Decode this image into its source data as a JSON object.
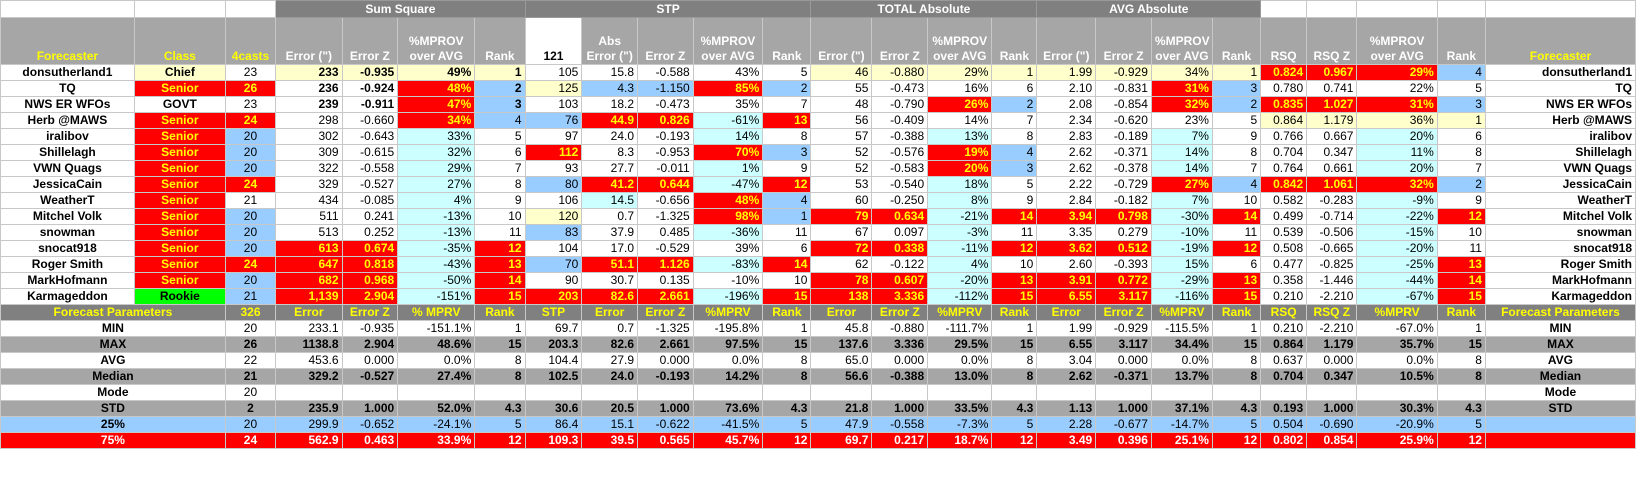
{
  "groups": {
    "sum_square": "Sum Square",
    "stp": "STP",
    "total_abs": "TOTAL Absolute",
    "avg_abs": "AVG Absolute"
  },
  "headers": {
    "forecaster": "Forecaster",
    "class": "Class",
    "fourcasts": "4casts",
    "error_in": "Error (\")",
    "error_z": "Error Z",
    "mprov": "%MPROV over AVG",
    "rank": "Rank",
    "stp_num": "121",
    "abs_error": "Abs Error (\")",
    "rsq": "RSQ",
    "rsq_z": "RSQ Z"
  },
  "rows": [
    [
      "donsutherland1",
      "Chief",
      "23",
      "233",
      "-0.935",
      "49%",
      "1",
      "105",
      "15.8",
      "-0.588",
      "43%",
      "5",
      "46",
      "-0.880",
      "29%",
      "1",
      "1.99",
      "-0.929",
      "34%",
      "1",
      "0.824",
      "0.967",
      "29%",
      "4",
      "donsutherland1"
    ],
    [
      "TQ",
      "Senior",
      "26",
      "236",
      "-0.924",
      "48%",
      "2",
      "125",
      "4.3",
      "-1.150",
      "85%",
      "2",
      "55",
      "-0.473",
      "16%",
      "6",
      "2.10",
      "-0.831",
      "31%",
      "3",
      "0.780",
      "0.741",
      "22%",
      "5",
      "TQ"
    ],
    [
      "NWS ER WFOs",
      "GOVT",
      "23",
      "239",
      "-0.911",
      "47%",
      "3",
      "103",
      "18.2",
      "-0.473",
      "35%",
      "7",
      "48",
      "-0.790",
      "26%",
      "2",
      "2.08",
      "-0.854",
      "32%",
      "2",
      "0.835",
      "1.027",
      "31%",
      "3",
      "NWS ER WFOs"
    ],
    [
      "Herb @MAWS",
      "Senior",
      "24",
      "298",
      "-0.660",
      "34%",
      "4",
      "76",
      "44.9",
      "0.826",
      "-61%",
      "13",
      "56",
      "-0.409",
      "14%",
      "7",
      "2.34",
      "-0.620",
      "23%",
      "5",
      "0.864",
      "1.179",
      "36%",
      "1",
      "Herb @MAWS"
    ],
    [
      "iralibov",
      "Senior",
      "20",
      "302",
      "-0.643",
      "33%",
      "5",
      "97",
      "24.0",
      "-0.193",
      "14%",
      "8",
      "57",
      "-0.388",
      "13%",
      "8",
      "2.83",
      "-0.189",
      "7%",
      "9",
      "0.766",
      "0.667",
      "20%",
      "6",
      "iralibov"
    ],
    [
      "Shillelagh",
      "Senior",
      "20",
      "309",
      "-0.615",
      "32%",
      "6",
      "112",
      "8.3",
      "-0.953",
      "70%",
      "3",
      "52",
      "-0.576",
      "19%",
      "4",
      "2.62",
      "-0.371",
      "14%",
      "8",
      "0.704",
      "0.347",
      "11%",
      "8",
      "Shillelagh"
    ],
    [
      "VWN Quags",
      "Senior",
      "20",
      "322",
      "-0.558",
      "29%",
      "7",
      "93",
      "27.7",
      "-0.011",
      "1%",
      "9",
      "52",
      "-0.583",
      "20%",
      "3",
      "2.62",
      "-0.378",
      "14%",
      "7",
      "0.764",
      "0.661",
      "20%",
      "7",
      "VWN Quags"
    ],
    [
      "JessicaCain",
      "Senior",
      "24",
      "329",
      "-0.527",
      "27%",
      "8",
      "80",
      "41.2",
      "0.644",
      "-47%",
      "12",
      "53",
      "-0.540",
      "18%",
      "5",
      "2.22",
      "-0.729",
      "27%",
      "4",
      "0.842",
      "1.061",
      "32%",
      "2",
      "JessicaCain"
    ],
    [
      "WeatherT",
      "Senior",
      "21",
      "434",
      "-0.085",
      "4%",
      "9",
      "106",
      "14.5",
      "-0.656",
      "48%",
      "4",
      "60",
      "-0.250",
      "8%",
      "9",
      "2.84",
      "-0.182",
      "7%",
      "10",
      "0.582",
      "-0.283",
      "-9%",
      "9",
      "WeatherT"
    ],
    [
      "Mitchel Volk",
      "Senior",
      "20",
      "511",
      "0.241",
      "-13%",
      "10",
      "120",
      "0.7",
      "-1.325",
      "98%",
      "1",
      "79",
      "0.634",
      "-21%",
      "14",
      "3.94",
      "0.798",
      "-30%",
      "14",
      "0.499",
      "-0.714",
      "-22%",
      "12",
      "Mitchel Volk"
    ],
    [
      "snowman",
      "Senior",
      "20",
      "513",
      "0.252",
      "-13%",
      "11",
      "83",
      "37.9",
      "0.485",
      "-36%",
      "11",
      "67",
      "0.097",
      "-3%",
      "11",
      "3.35",
      "0.279",
      "-10%",
      "11",
      "0.539",
      "-0.506",
      "-15%",
      "10",
      "snowman"
    ],
    [
      "snocat918",
      "Senior",
      "20",
      "613",
      "0.674",
      "-35%",
      "12",
      "104",
      "17.0",
      "-0.529",
      "39%",
      "6",
      "72",
      "0.338",
      "-11%",
      "12",
      "3.62",
      "0.512",
      "-19%",
      "12",
      "0.508",
      "-0.665",
      "-20%",
      "11",
      "snocat918"
    ],
    [
      "Roger Smith",
      "Senior",
      "24",
      "647",
      "0.818",
      "-43%",
      "13",
      "70",
      "51.1",
      "1.126",
      "-83%",
      "14",
      "62",
      "-0.122",
      "4%",
      "10",
      "2.60",
      "-0.393",
      "15%",
      "6",
      "0.477",
      "-0.825",
      "-25%",
      "13",
      "Roger Smith"
    ],
    [
      "MarkHofmann",
      "Senior",
      "20",
      "682",
      "0.968",
      "-50%",
      "14",
      "90",
      "30.7",
      "0.135",
      "-10%",
      "10",
      "78",
      "0.607",
      "-20%",
      "13",
      "3.91",
      "0.772",
      "-29%",
      "13",
      "0.358",
      "-1.446",
      "-44%",
      "14",
      "MarkHofmann"
    ],
    [
      "Karmageddon",
      "Rookie",
      "21",
      "1,139",
      "2.904",
      "-151%",
      "15",
      "203",
      "82.6",
      "2.661",
      "-196%",
      "15",
      "138",
      "3.336",
      "-112%",
      "15",
      "6.55",
      "3.117",
      "-116%",
      "15",
      "0.210",
      "-2.210",
      "-67%",
      "15",
      "Karmageddon"
    ]
  ],
  "params_header": [
    "Forecast Parameters",
    "326",
    "Error",
    "Error Z",
    "% MPRV",
    "Rank",
    "STP",
    "Error",
    "Error Z",
    "%MPRV",
    "Rank",
    "Error",
    "Error Z",
    "%MPRV",
    "Rank",
    "Error",
    "Error Z",
    "%MPRV",
    "Rank",
    "RSQ",
    "RSQ Z",
    "%MPRV",
    "Rank",
    "Forecast Parameters"
  ],
  "stats": [
    [
      "MIN",
      "20",
      "233.1",
      "-0.935",
      "-151.1%",
      "1",
      "69.7",
      "0.7",
      "-1.325",
      "-195.8%",
      "1",
      "45.8",
      "-0.880",
      "-111.7%",
      "1",
      "1.99",
      "-0.929",
      "-115.5%",
      "1",
      "0.210",
      "-2.210",
      "-67.0%",
      "1",
      "MIN"
    ],
    [
      "MAX",
      "26",
      "1138.8",
      "2.904",
      "48.6%",
      "15",
      "203.3",
      "82.6",
      "2.661",
      "97.5%",
      "15",
      "137.6",
      "3.336",
      "29.5%",
      "15",
      "6.55",
      "3.117",
      "34.4%",
      "15",
      "0.864",
      "1.179",
      "35.7%",
      "15",
      "MAX"
    ],
    [
      "AVG",
      "22",
      "453.6",
      "0.000",
      "0.0%",
      "8",
      "104.4",
      "27.9",
      "0.000",
      "0.0%",
      "8",
      "65.0",
      "0.000",
      "0.0%",
      "8",
      "3.04",
      "0.000",
      "0.0%",
      "8",
      "0.637",
      "0.000",
      "0.0%",
      "8",
      "AVG"
    ],
    [
      "Median",
      "21",
      "329.2",
      "-0.527",
      "27.4%",
      "8",
      "102.5",
      "24.0",
      "-0.193",
      "14.2%",
      "8",
      "56.6",
      "-0.388",
      "13.0%",
      "8",
      "2.62",
      "-0.371",
      "13.7%",
      "8",
      "0.704",
      "0.347",
      "10.5%",
      "8",
      "Median"
    ],
    [
      "Mode",
      "20",
      "",
      "",
      "",
      "",
      "",
      "",
      "",
      "",
      "",
      "",
      "",
      "",
      "",
      "",
      "",
      "",
      "",
      "",
      "",
      "",
      "",
      "Mode"
    ],
    [
      "STD",
      "2",
      "235.9",
      "1.000",
      "52.0%",
      "4.3",
      "30.6",
      "20.5",
      "1.000",
      "73.6%",
      "4.3",
      "21.8",
      "1.000",
      "33.5%",
      "4.3",
      "1.13",
      "1.000",
      "37.1%",
      "4.3",
      "0.193",
      "1.000",
      "30.3%",
      "4.3",
      "STD"
    ],
    [
      "25%",
      "20",
      "299.9",
      "-0.652",
      "-24.1%",
      "5",
      "86.4",
      "15.1",
      "-0.622",
      "-41.5%",
      "5",
      "47.9",
      "-0.558",
      "-7.3%",
      "5",
      "2.28",
      "-0.677",
      "-14.7%",
      "5",
      "0.504",
      "-0.690",
      "-20.9%",
      "5",
      ""
    ],
    [
      "75%",
      "24",
      "562.9",
      "0.463",
      "33.9%",
      "12",
      "109.3",
      "39.5",
      "0.565",
      "45.7%",
      "12",
      "69.7",
      "0.217",
      "18.7%",
      "12",
      "3.49",
      "0.396",
      "25.1%",
      "12",
      "0.802",
      "0.854",
      "25.9%",
      "12",
      ""
    ]
  ]
}
